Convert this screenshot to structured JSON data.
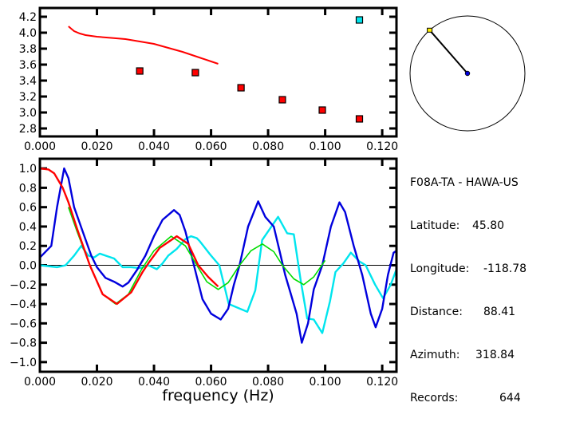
{
  "colors": {
    "red": "#ff0000",
    "blue": "#0000dd",
    "cyan": "#00e5ee",
    "green": "#00dd00",
    "yellow": "#ffee00",
    "axis": "#000000"
  },
  "station": {
    "title": "F08A-TA - HAWA-US",
    "rows": [
      {
        "label": "Latitude:",
        "value": "45.80"
      },
      {
        "label": "Longitude:",
        "value": "-118.78"
      },
      {
        "label": "Distance:",
        "value": "88.41"
      },
      {
        "label": "Azimuth:",
        "value": "318.84"
      },
      {
        "label": "Records:",
        "value": "644"
      }
    ]
  },
  "azimuth_deg": 318.84,
  "chart_data": [
    {
      "type": "scatter",
      "xlim": [
        0,
        0.125
      ],
      "ylim": [
        2.7,
        4.31
      ],
      "xticks": [
        "0.000",
        "0.020",
        "0.040",
        "0.060",
        "0.080",
        "0.100",
        "0.120"
      ],
      "yticks": [
        "2.8",
        "3.0",
        "3.2",
        "3.4",
        "3.6",
        "3.8",
        "4.0",
        "4.2"
      ],
      "curve": {
        "color": "red",
        "x": [
          0.01,
          0.011,
          0.012,
          0.014,
          0.016,
          0.02,
          0.025,
          0.03,
          0.035,
          0.04,
          0.045,
          0.05,
          0.055,
          0.06,
          0.0625
        ],
        "y": [
          4.08,
          4.05,
          4.02,
          3.99,
          3.97,
          3.95,
          3.935,
          3.92,
          3.89,
          3.86,
          3.81,
          3.76,
          3.7,
          3.64,
          3.61
        ]
      },
      "points": [
        {
          "x": 0.035,
          "y": 3.52,
          "color": "red"
        },
        {
          "x": 0.0545,
          "y": 3.5,
          "color": "red"
        },
        {
          "x": 0.0705,
          "y": 3.31,
          "color": "red"
        },
        {
          "x": 0.085,
          "y": 3.16,
          "color": "red"
        },
        {
          "x": 0.099,
          "y": 3.03,
          "color": "red"
        },
        {
          "x": 0.112,
          "y": 2.92,
          "color": "red"
        },
        {
          "x": 0.112,
          "y": 4.16,
          "color": "cyan"
        }
      ]
    },
    {
      "type": "line",
      "xlabel": "frequency (Hz)",
      "xlim": [
        0,
        0.125
      ],
      "ylim": [
        -1.1,
        1.1
      ],
      "xticks": [
        "0.000",
        "0.020",
        "0.040",
        "0.060",
        "0.080",
        "0.100",
        "0.120"
      ],
      "yticks": [
        "-1.0",
        "-0.8",
        "-0.6",
        "-0.4",
        "-0.2",
        "0.0",
        "0.2",
        "0.4",
        "0.6",
        "0.8",
        "1.0"
      ],
      "series": [
        {
          "color": "cyan",
          "x": [
            0,
            0.006,
            0.009,
            0.012,
            0.0145,
            0.017,
            0.019,
            0.021,
            0.023,
            0.026,
            0.029,
            0.032,
            0.035,
            0.038,
            0.041,
            0.043,
            0.045,
            0.048,
            0.051,
            0.053,
            0.055,
            0.056,
            0.0597,
            0.0629,
            0.0662,
            0.0727,
            0.0755,
            0.0779,
            0.0835,
            0.0867,
            0.089,
            0.0914,
            0.0937,
            0.096,
            0.099,
            0.1017,
            0.1036,
            0.1064,
            0.109,
            0.112,
            0.1142,
            0.1175,
            0.1203,
            0.123,
            0.125
          ],
          "y": [
            0,
            -0.02,
            0,
            0.1,
            0.2,
            0.1,
            0.08,
            0.12,
            0.1,
            0.07,
            -0.02,
            -0.02,
            -0.03,
            0,
            -0.04,
            0.02,
            0.1,
            0.17,
            0.27,
            0.3,
            0.28,
            0.25,
            0.11,
            0,
            -0.4,
            -0.48,
            -0.26,
            0.26,
            0.5,
            0.33,
            0.32,
            -0.15,
            -0.55,
            -0.56,
            -0.7,
            -0.37,
            -0.07,
            0.02,
            0.13,
            0.04,
            0,
            -0.2,
            -0.34,
            -0.2,
            -0.04
          ]
        },
        {
          "color": "blue",
          "x": [
            0,
            0.004,
            0.006,
            0.0085,
            0.01,
            0.012,
            0.015,
            0.018,
            0.02,
            0.023,
            0.026,
            0.029,
            0.031,
            0.034,
            0.037,
            0.04,
            0.043,
            0.047,
            0.049,
            0.051,
            0.054,
            0.057,
            0.06,
            0.0634,
            0.066,
            0.068,
            0.07,
            0.073,
            0.0765,
            0.079,
            0.082,
            0.084,
            0.086,
            0.088,
            0.09,
            0.0918,
            0.094,
            0.096,
            0.099,
            0.102,
            0.105,
            0.107,
            0.11,
            0.113,
            0.116,
            0.1177,
            0.12,
            0.122,
            0.124,
            0.125
          ],
          "y": [
            0.08,
            0.2,
            0.6,
            1.0,
            0.9,
            0.6,
            0.35,
            0.1,
            -0.02,
            -0.13,
            -0.17,
            -0.22,
            -0.18,
            -0.05,
            0.1,
            0.3,
            0.47,
            0.57,
            0.52,
            0.35,
            0,
            -0.35,
            -0.5,
            -0.56,
            -0.45,
            -0.2,
            0,
            0.4,
            0.66,
            0.5,
            0.4,
            0.15,
            -0.1,
            -0.3,
            -0.5,
            -0.8,
            -0.6,
            -0.25,
            0,
            0.4,
            0.65,
            0.55,
            0.2,
            -0.1,
            -0.5,
            -0.64,
            -0.45,
            -0.1,
            0.13,
            0.15
          ]
        },
        {
          "color": "green",
          "x": [
            0.01,
            0.013,
            0.0175,
            0.022,
            0.0265,
            0.031,
            0.0355,
            0.04,
            0.046,
            0.051,
            0.055,
            0.0585,
            0.0625,
            0.066,
            0.07,
            0.074,
            0.078,
            0.082,
            0.085,
            0.089,
            0.0925,
            0.096,
            0.1
          ],
          "y": [
            0.6,
            0.35,
            0,
            -0.3,
            -0.4,
            -0.3,
            -0.05,
            0.15,
            0.3,
            0.2,
            0,
            -0.17,
            -0.25,
            -0.18,
            0,
            0.15,
            0.22,
            0.14,
            0,
            -0.14,
            -0.2,
            -0.12,
            0.05
          ]
        },
        {
          "color": "red",
          "x": [
            0,
            0.003,
            0.005,
            0.008,
            0.01,
            0.013,
            0.0175,
            0.022,
            0.027,
            0.032,
            0.036,
            0.038,
            0.042,
            0.048,
            0.052,
            0.0555,
            0.059,
            0.0625
          ],
          "y": [
            1.0,
            0.99,
            0.95,
            0.8,
            0.65,
            0.38,
            0,
            -0.3,
            -0.4,
            -0.28,
            -0.07,
            0.02,
            0.18,
            0.3,
            0.22,
            0,
            -0.12,
            -0.22
          ]
        }
      ]
    }
  ]
}
